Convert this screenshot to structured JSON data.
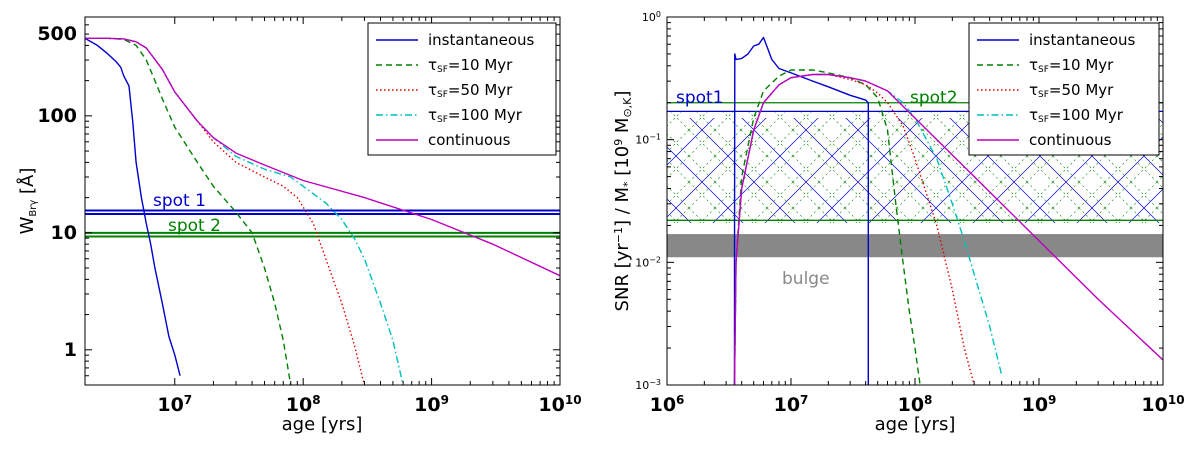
{
  "chart_data": [
    {
      "type": "line",
      "xlabel": "age [yrs]",
      "ylabel": "W_Brγ [Å]",
      "xscale": "log",
      "yscale": "log",
      "xlim": [
        2000000,
        10000000000
      ],
      "ylim": [
        0.5,
        700
      ],
      "xtick_labels": [
        "10^7",
        "10^8",
        "10^9",
        "10^10"
      ],
      "ytick_labels": [
        "500",
        "100",
        "10",
        "1"
      ],
      "legend_position": "top-right",
      "series": [
        {
          "name": "instantaneous",
          "color": "#0000cc",
          "style": "solid",
          "x": [
            2000000,
            2500000,
            3000000,
            3500000,
            3800000,
            4000000,
            4400000,
            4700000,
            5000000,
            5500000,
            6000000,
            6500000,
            7000000,
            8000000,
            9000000,
            10000000,
            11000000
          ],
          "y": [
            460,
            400,
            340,
            290,
            260,
            220,
            180,
            90,
            40,
            20,
            12,
            8,
            5,
            2.5,
            1.3,
            0.9,
            0.6
          ]
        },
        {
          "name": "τSF=10 Myr",
          "color": "#008000",
          "style": "dashed",
          "x": [
            2000000,
            3000000,
            4000000,
            5000000,
            6000000,
            7000000,
            8000000,
            10000000,
            15000000,
            20000000,
            30000000,
            40000000,
            50000000,
            60000000,
            70000000,
            80000000
          ],
          "y": [
            460,
            460,
            450,
            400,
            300,
            200,
            140,
            80,
            40,
            25,
            15,
            10,
            5,
            2.5,
            1.2,
            0.5
          ]
        },
        {
          "name": "τSF=50 Myr",
          "color": "#e00000",
          "style": "dotted",
          "x": [
            2000000,
            3000000,
            4000000,
            5000000,
            6000000,
            8000000,
            10000000,
            15000000,
            20000000,
            30000000,
            50000000,
            70000000,
            90000000,
            120000000,
            150000000,
            200000000,
            250000000,
            300000000
          ],
          "y": [
            460,
            460,
            455,
            430,
            380,
            250,
            160,
            90,
            60,
            40,
            30,
            25,
            20,
            12,
            6,
            2.5,
            1.1,
            0.5
          ]
        },
        {
          "name": "τSF=100 Myr",
          "color": "#00bfbf",
          "style": "dashdot",
          "x": [
            2000000,
            3000000,
            4000000,
            5000000,
            6000000,
            8000000,
            10000000,
            15000000,
            20000000,
            30000000,
            50000000,
            80000000,
            100000000,
            150000000,
            200000000,
            250000000,
            300000000,
            400000000,
            500000000,
            600000000
          ],
          "y": [
            460,
            460,
            455,
            430,
            380,
            250,
            160,
            90,
            65,
            45,
            35,
            30,
            25,
            18,
            13,
            9,
            6,
            2.5,
            1.2,
            0.5
          ]
        },
        {
          "name": "continuous",
          "color": "#bf00bf",
          "style": "solid",
          "x": [
            2000000,
            3000000,
            4000000,
            5000000,
            6000000,
            8000000,
            10000000,
            15000000,
            20000000,
            30000000,
            50000000,
            100000000,
            300000000,
            1000000000,
            3000000000,
            10000000000
          ],
          "y": [
            460,
            460,
            455,
            430,
            380,
            250,
            160,
            90,
            65,
            48,
            38,
            28,
            20,
            13,
            8,
            4.3
          ]
        }
      ],
      "reference_lines": [
        {
          "label": "spot 1",
          "color": "#0000cc",
          "y_values": [
            14.5,
            15.5
          ]
        },
        {
          "label": "spot 2",
          "color": "#008000",
          "y_values": [
            9.3,
            10
          ]
        }
      ]
    },
    {
      "type": "line",
      "xlabel": "age [yrs]",
      "ylabel": "SNR [yr^-1] / M* [10^9 M⊙,K]",
      "xscale": "log",
      "yscale": "log",
      "xlim": [
        1000000,
        10000000000
      ],
      "ylim": [
        0.001,
        1
      ],
      "xtick_labels": [
        "10^6",
        "10^7",
        "10^8",
        "10^9",
        "10^10"
      ],
      "ytick_labels": [
        "10^0",
        "10^-1",
        "10^-2",
        "10^-3"
      ],
      "legend_position": "top-right",
      "series": [
        {
          "name": "instantaneous",
          "color": "#0000cc",
          "style": "solid",
          "x": [
            3500000,
            3500000,
            3520000,
            3600000,
            4000000,
            4500000,
            5000000,
            5500000,
            6000000,
            6500000,
            7000000,
            8000000,
            10000000,
            15000000,
            20000000,
            30000000,
            40000000,
            42000000,
            42000000
          ],
          "y": [
            0.001,
            0.01,
            0.5,
            0.45,
            0.46,
            0.5,
            0.58,
            0.6,
            0.68,
            0.55,
            0.45,
            0.38,
            0.35,
            0.3,
            0.27,
            0.23,
            0.21,
            0.2,
            0.001
          ]
        },
        {
          "name": "τSF=10 Myr",
          "color": "#008000",
          "style": "dashed",
          "x": [
            3500000,
            3600000,
            4000000,
            5000000,
            6000000,
            8000000,
            10000000,
            15000000,
            20000000,
            30000000,
            40000000,
            50000000,
            60000000,
            70000000,
            80000000,
            90000000,
            100000000,
            110000000
          ],
          "y": [
            0.001,
            0.01,
            0.05,
            0.15,
            0.25,
            0.33,
            0.37,
            0.37,
            0.35,
            0.32,
            0.28,
            0.22,
            0.12,
            0.03,
            0.01,
            0.004,
            0.002,
            0.001
          ]
        },
        {
          "name": "τSF=50 Myr",
          "color": "#e00000",
          "style": "dotted",
          "x": [
            3500000,
            3600000,
            4000000,
            5000000,
            6000000,
            8000000,
            10000000,
            15000000,
            20000000,
            30000000,
            40000000,
            50000000,
            60000000,
            80000000,
            100000000,
            120000000,
            150000000,
            200000000,
            250000000,
            300000000
          ],
          "y": [
            0.001,
            0.01,
            0.04,
            0.12,
            0.2,
            0.28,
            0.32,
            0.34,
            0.34,
            0.31,
            0.28,
            0.24,
            0.2,
            0.13,
            0.07,
            0.04,
            0.02,
            0.006,
            0.002,
            0.001
          ]
        },
        {
          "name": "τSF=100 Myr",
          "color": "#00bfbf",
          "style": "dashdot",
          "x": [
            3500000,
            3600000,
            4000000,
            5000000,
            6000000,
            8000000,
            10000000,
            15000000,
            20000000,
            30000000,
            40000000,
            60000000,
            80000000,
            100000000,
            150000000,
            200000000,
            250000000,
            300000000,
            400000000,
            500000000
          ],
          "y": [
            0.001,
            0.01,
            0.04,
            0.12,
            0.2,
            0.28,
            0.32,
            0.34,
            0.34,
            0.32,
            0.3,
            0.25,
            0.2,
            0.15,
            0.07,
            0.03,
            0.015,
            0.008,
            0.003,
            0.0012
          ]
        },
        {
          "name": "continuous",
          "color": "#bf00bf",
          "style": "solid",
          "x": [
            3500000,
            3600000,
            4000000,
            5000000,
            6000000,
            8000000,
            10000000,
            15000000,
            20000000,
            30000000,
            40000000,
            60000000,
            100000000,
            300000000,
            1000000000,
            3000000000,
            10000000000
          ],
          "y": [
            0.001,
            0.01,
            0.04,
            0.12,
            0.2,
            0.28,
            0.32,
            0.34,
            0.34,
            0.32,
            0.3,
            0.25,
            0.15,
            0.05,
            0.015,
            0.005,
            0.0016
          ]
        }
      ],
      "reference_lines": [
        {
          "label": "spot1",
          "color": "#0000cc",
          "y_values": [
            0.17
          ],
          "hatched_down_to": 0.02
        },
        {
          "label": "spot2",
          "color": "#008000",
          "y_values": [
            0.2,
            0.022
          ]
        }
      ],
      "band": {
        "label": "bulge",
        "color": "#888888",
        "y_range": [
          0.011,
          0.017
        ]
      }
    }
  ]
}
